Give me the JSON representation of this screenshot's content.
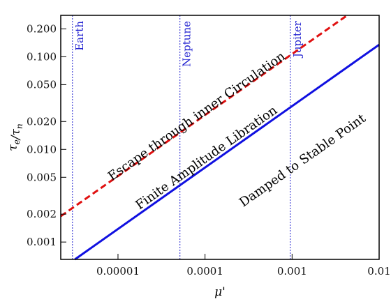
{
  "chart_data": {
    "type": "line",
    "xscale": "log",
    "yscale": "log",
    "xlim": [
      2.2e-06,
      0.01
    ],
    "ylim": [
      0.00065,
      0.28
    ],
    "xlabel": "μ'",
    "ylabel": "τ_e/τ_n",
    "x_ticks": [
      {
        "value": 1e-05,
        "label": "0.00001"
      },
      {
        "value": 0.0001,
        "label": "0.0001"
      },
      {
        "value": 0.001,
        "label": "0.001"
      },
      {
        "value": 0.01,
        "label": "0.01"
      }
    ],
    "y_ticks": [
      {
        "value": 0.001,
        "label": "0.001"
      },
      {
        "value": 0.002,
        "label": "0.002"
      },
      {
        "value": 0.005,
        "label": "0.005"
      },
      {
        "value": 0.01,
        "label": "0.010"
      },
      {
        "value": 0.02,
        "label": "0.020"
      },
      {
        "value": 0.05,
        "label": "0.050"
      },
      {
        "value": 0.1,
        "label": "0.100"
      },
      {
        "value": 0.2,
        "label": "0.200"
      }
    ],
    "series": [
      {
        "style": "solid",
        "color": "#1010e0",
        "x": [
          3.2e-06,
          0.01
        ],
        "y": [
          0.00065,
          0.135
        ]
      },
      {
        "style": "dashed",
        "color": "#e01010",
        "x": [
          2.2e-06,
          0.0043
        ],
        "y": [
          0.0019,
          0.28
        ]
      }
    ],
    "planet_lines": [
      {
        "label": "Earth",
        "x": 3e-06
      },
      {
        "label": "Neptune",
        "x": 5.15e-05
      },
      {
        "label": "Jupiter",
        "x": 0.000954
      }
    ],
    "region_labels": [
      {
        "text": "Escape through inner Circulation",
        "x": 8.5e-05,
        "y": 0.021
      },
      {
        "text": "Finite Amplitude Libration",
        "x": 0.00011,
        "y": 0.0075
      },
      {
        "text": "Damped to Stable Point",
        "x": 0.0014,
        "y": 0.007
      }
    ],
    "colors": {
      "planet_line": "#2020d0",
      "axis": "#000000"
    }
  }
}
